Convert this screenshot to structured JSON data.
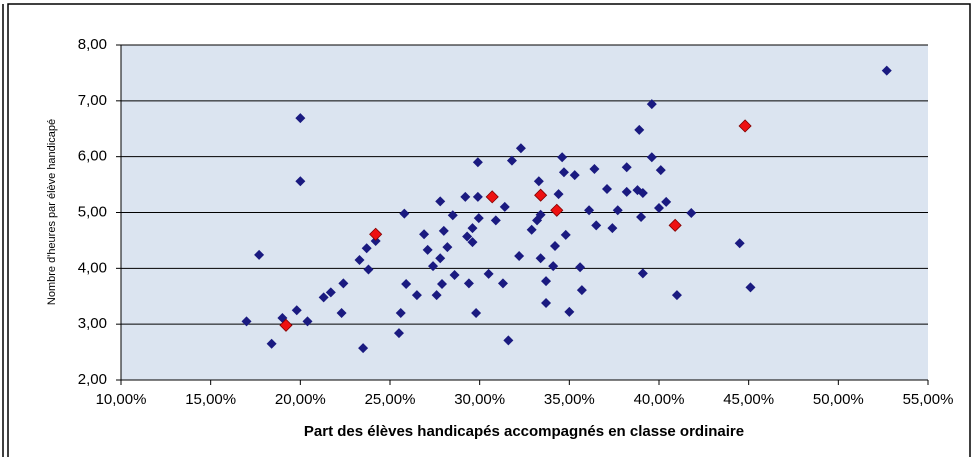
{
  "chart_data": {
    "type": "scatter",
    "x_label": "Part des élèves handicapés accompagnés en classe ordinaire",
    "y_label": "Nombre d'heures par élève handicapé",
    "xlim": [
      10,
      55
    ],
    "xticks": [
      {
        "value": 10,
        "label": "10,00%"
      },
      {
        "value": 15,
        "label": "15,00%"
      },
      {
        "value": 20,
        "label": "20,00%"
      },
      {
        "value": 25,
        "label": "25,00%"
      },
      {
        "value": 30,
        "label": "30,00%"
      },
      {
        "value": 35,
        "label": "35,00%"
      },
      {
        "value": 40,
        "label": "40,00%"
      },
      {
        "value": 45,
        "label": "45,00%"
      },
      {
        "value": 50,
        "label": "50,00%"
      },
      {
        "value": 55,
        "label": "55,00%"
      }
    ],
    "ylim": [
      2,
      8
    ],
    "yticks": [
      {
        "value": 2,
        "label": "2,00"
      },
      {
        "value": 3,
        "label": "3,00"
      },
      {
        "value": 4,
        "label": "4,00"
      },
      {
        "value": 5,
        "label": "5,00"
      },
      {
        "value": 6,
        "label": "6,00"
      },
      {
        "value": 7,
        "label": "7,00"
      },
      {
        "value": 8,
        "label": "8,00"
      }
    ],
    "grid": true,
    "series": [
      {
        "color": "#1a1a80",
        "x": [
          17.0,
          17.7,
          18.4,
          19.0,
          19.8,
          20.0,
          20.0,
          20.4,
          21.3,
          21.7,
          22.3,
          22.4,
          23.3,
          23.5,
          23.7,
          23.8,
          24.2,
          25.5,
          25.6,
          25.8,
          25.9,
          26.5,
          26.9,
          27.1,
          27.4,
          27.6,
          27.8,
          27.8,
          27.9,
          28.0,
          28.2,
          28.5,
          28.6,
          29.2,
          29.3,
          29.4,
          29.6,
          29.6,
          29.8,
          29.9,
          29.9,
          29.95,
          30.5,
          30.9,
          31.3,
          31.4,
          31.6,
          31.8,
          32.2,
          32.3,
          32.9,
          33.2,
          33.3,
          33.4,
          33.4,
          33.7,
          33.7,
          34.1,
          34.2,
          34.4,
          34.6,
          34.7,
          34.8,
          35.0,
          35.3,
          35.6,
          35.7,
          36.1,
          36.4,
          36.5,
          37.1,
          37.4,
          37.7,
          38.2,
          38.2,
          38.8,
          38.9,
          39.0,
          39.1,
          39.1,
          39.6,
          39.6,
          40.0,
          40.1,
          40.4,
          41.0,
          41.8,
          44.5,
          45.1,
          52.7
        ],
        "values": [
          3.05,
          4.24,
          2.65,
          3.11,
          3.25,
          6.69,
          5.56,
          3.05,
          3.48,
          3.57,
          3.2,
          3.73,
          4.15,
          2.57,
          4.36,
          3.98,
          4.49,
          2.84,
          3.2,
          4.98,
          3.72,
          3.52,
          4.61,
          4.33,
          4.04,
          3.52,
          5.2,
          4.18,
          3.72,
          4.67,
          4.38,
          4.95,
          3.88,
          5.28,
          4.57,
          3.73,
          4.72,
          4.47,
          3.2,
          5.9,
          5.28,
          4.9,
          3.9,
          4.86,
          3.73,
          5.1,
          2.71,
          5.93,
          4.22,
          6.15,
          4.69,
          4.86,
          5.56,
          4.96,
          4.18,
          3.77,
          3.38,
          4.04,
          4.4,
          5.33,
          5.99,
          5.72,
          4.6,
          3.22,
          5.67,
          4.02,
          3.61,
          5.04,
          5.78,
          4.77,
          5.42,
          4.72,
          5.04,
          5.81,
          5.37,
          5.4,
          6.48,
          4.92,
          5.35,
          3.91,
          6.94,
          5.99,
          5.08,
          5.76,
          5.19,
          3.52,
          4.99,
          4.45,
          3.66,
          7.54
        ]
      },
      {
        "color": "#ee1111",
        "x": [
          19.2,
          24.2,
          30.7,
          33.4,
          34.3,
          40.9,
          44.8
        ],
        "values": [
          2.98,
          4.61,
          5.28,
          5.31,
          5.04,
          4.77,
          6.55
        ]
      }
    ]
  }
}
